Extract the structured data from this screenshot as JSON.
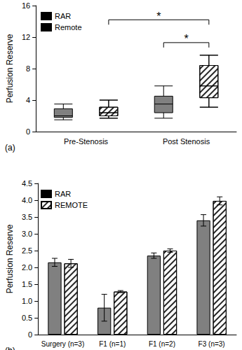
{
  "chart_data": [
    {
      "type": "boxplot",
      "title": "(a)",
      "ylabel": "Perfusion Reserve",
      "categories": [
        "Pre-Stenosis",
        "Post Stenosis"
      ],
      "series": [
        {
          "name": "RAR",
          "color": "#808080",
          "values": [
            [
              1.5,
              1.8,
              2.0,
              2.9,
              3.5
            ],
            [
              1.7,
              2.4,
              3.5,
              4.5,
              5.8
            ]
          ]
        },
        {
          "name": "Remote",
          "color": "#ffffff",
          "values": [
            [
              1.7,
              2.0,
              2.4,
              3.1,
              4.0
            ],
            [
              3.1,
              4.3,
              5.8,
              8.4,
              9.7
            ]
          ]
        }
      ],
      "ylim": [
        0,
        16
      ],
      "yticks": [
        0,
        4,
        8,
        12,
        16
      ],
      "grid": false,
      "legend": "top-left",
      "annotations": [
        {
          "text": "*",
          "from": [
            0,
            1
          ],
          "to": [
            1,
            1
          ],
          "y": 14.2
        },
        {
          "text": "*",
          "from": [
            1,
            0
          ],
          "to": [
            1,
            1
          ],
          "y": 11.3
        }
      ]
    },
    {
      "type": "bar",
      "title": "(b)",
      "ylabel": "Perfusion Reserve",
      "categories": [
        "Surgery (n=3)",
        "F1 (n=1)",
        "F1 (n=2)",
        "F3 (n=3)"
      ],
      "series": [
        {
          "name": "RAR",
          "color": "#808080",
          "values": [
            2.15,
            0.8,
            2.35,
            3.4
          ],
          "errors": [
            0.12,
            0.4,
            0.08,
            0.17
          ]
        },
        {
          "name": "REMOTE",
          "color": "#ffffff",
          "values": [
            2.12,
            1.28,
            2.5,
            3.98
          ],
          "errors": [
            0.12,
            0.03,
            0.05,
            0.12
          ]
        }
      ],
      "ylim": [
        0,
        4.5
      ],
      "yticks": [
        0,
        0.5,
        {
          "value": 1,
          "label": "1.0"
        },
        1.5,
        {
          "value": 2,
          "label": "2.0"
        },
        2.5,
        {
          "value": 3,
          "label": "3.0"
        },
        3.5,
        {
          "value": 4,
          "label": "4.0"
        },
        4.5
      ],
      "grid": false,
      "legend": "top-left"
    }
  ]
}
